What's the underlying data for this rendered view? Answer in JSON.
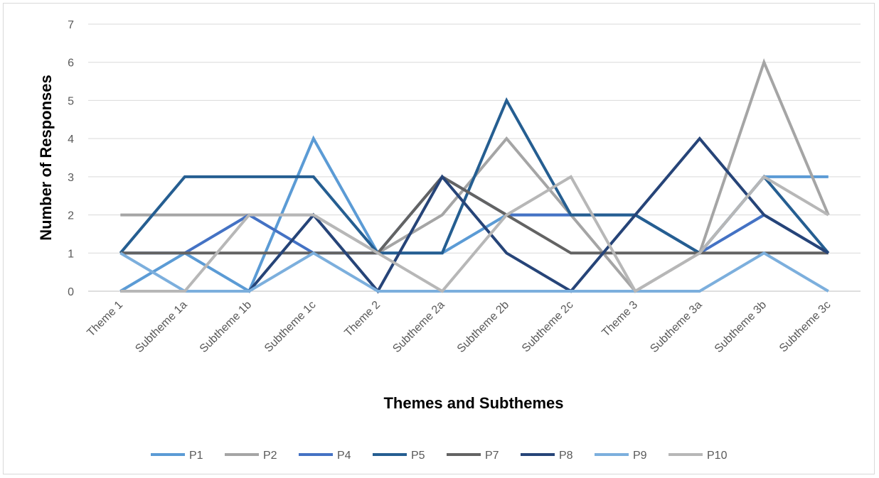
{
  "chart_data": {
    "type": "line",
    "xlabel": "Themes and Subthemes",
    "ylabel": "Number of Responses",
    "ylim": [
      0,
      7
    ],
    "yticks": [
      "0",
      "1",
      "2",
      "3",
      "4",
      "5",
      "6",
      "7"
    ],
    "grid": "horizontal",
    "legend_position": "bottom",
    "categories": [
      "Theme 1",
      "Subtheme 1a",
      "Subtheme 1b",
      "Subtheme 1c",
      "Theme 2",
      "Subtheme 2a",
      "Subtheme 2b",
      "Subtheme 2c",
      "Theme 3",
      "Subtheme 3a",
      "Subtheme 3b",
      "Subtheme 3c"
    ],
    "series": [
      {
        "name": "P1",
        "color": "#5B9BD5",
        "values": [
          0,
          1,
          0,
          4,
          1,
          1,
          2,
          2,
          2,
          1,
          3,
          3
        ]
      },
      {
        "name": "P2",
        "color": "#A5A5A5",
        "values": [
          2,
          2,
          2,
          2,
          1,
          2,
          4,
          2,
          0,
          1,
          6,
          2
        ]
      },
      {
        "name": "P4",
        "color": "#4472C4",
        "values": [
          1,
          1,
          2,
          1,
          1,
          3,
          2,
          2,
          2,
          1,
          2,
          1
        ]
      },
      {
        "name": "P5",
        "color": "#255E91",
        "values": [
          1,
          3,
          3,
          3,
          1,
          1,
          5,
          2,
          2,
          1,
          3,
          1
        ]
      },
      {
        "name": "P7",
        "color": "#636363",
        "values": [
          1,
          1,
          1,
          1,
          1,
          3,
          2,
          1,
          1,
          1,
          1,
          1
        ]
      },
      {
        "name": "P8",
        "color": "#264478",
        "values": [
          0,
          0,
          0,
          2,
          0,
          3,
          1,
          0,
          2,
          4,
          2,
          1
        ]
      },
      {
        "name": "P9",
        "color": "#7CAFDD",
        "values": [
          1,
          0,
          0,
          1,
          0,
          0,
          0,
          0,
          0,
          0,
          1,
          0
        ]
      },
      {
        "name": "P10",
        "color": "#B7B7B7",
        "values": [
          0,
          0,
          2,
          2,
          1,
          0,
          2,
          3,
          0,
          1,
          3,
          2
        ]
      }
    ]
  }
}
